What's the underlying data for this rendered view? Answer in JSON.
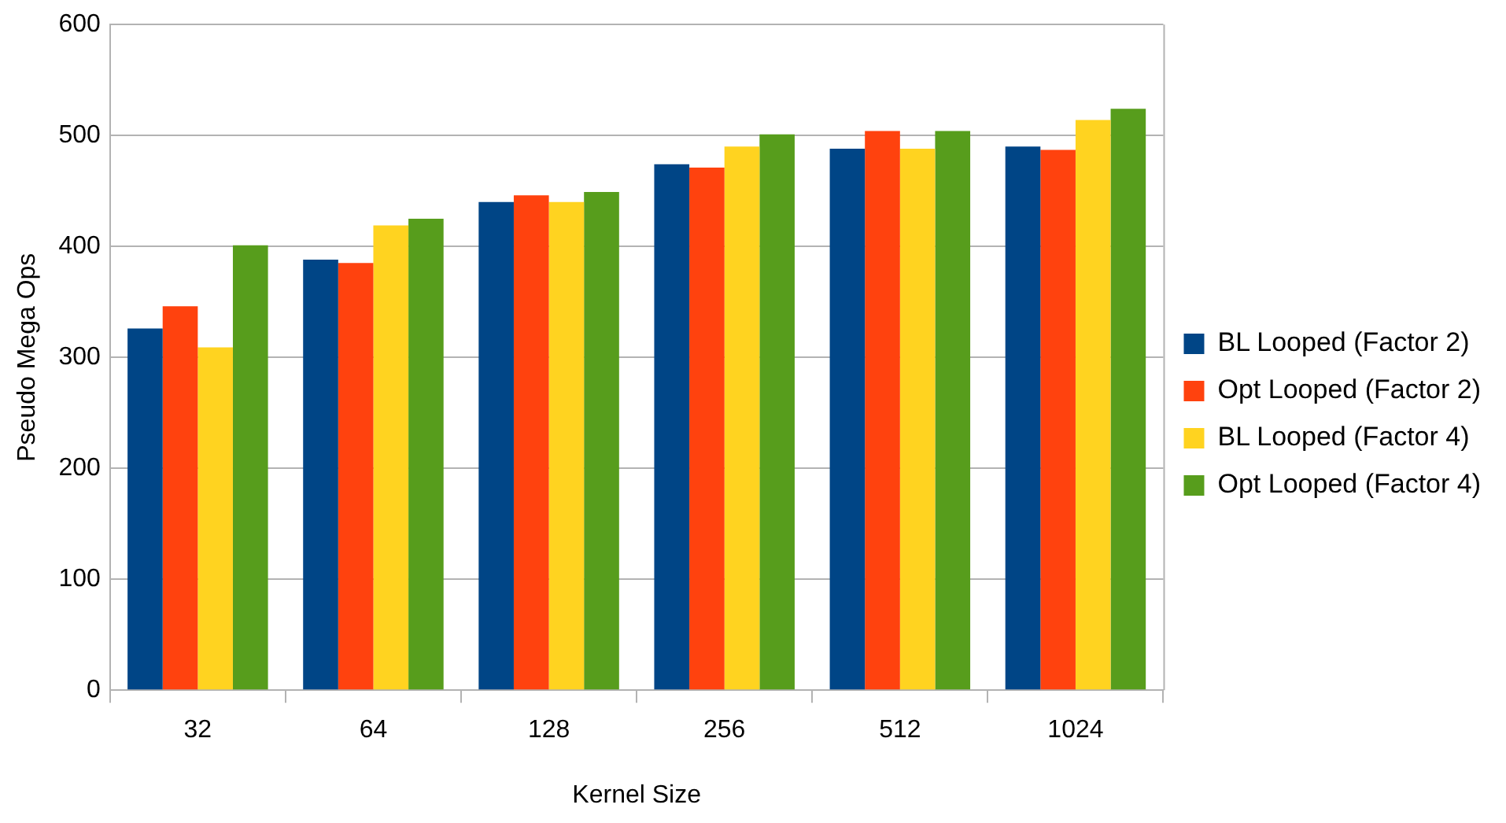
{
  "chart_data": {
    "type": "bar",
    "xlabel": "Kernel Size",
    "ylabel": "Pseudo Mega Ops",
    "categories": [
      "32",
      "64",
      "128",
      "256",
      "512",
      "1024"
    ],
    "series": [
      {
        "name": "BL Looped (Factor 2)",
        "color": "#004586",
        "values": [
          326,
          388,
          440,
          474,
          488,
          490
        ]
      },
      {
        "name": "Opt Looped (Factor 2)",
        "color": "#ff420e",
        "values": [
          346,
          385,
          446,
          471,
          504,
          487
        ]
      },
      {
        "name": "BL Looped (Factor 4)",
        "color": "#ffd320",
        "values": [
          309,
          419,
          440,
          490,
          488,
          514
        ]
      },
      {
        "name": "Opt Looped (Factor 4)",
        "color": "#579d1c",
        "values": [
          401,
          425,
          449,
          501,
          504,
          524
        ]
      }
    ],
    "ylim": [
      0,
      600
    ],
    "yticks": [
      0,
      100,
      200,
      300,
      400,
      500,
      600
    ],
    "grid": "y",
    "legend": "right"
  }
}
